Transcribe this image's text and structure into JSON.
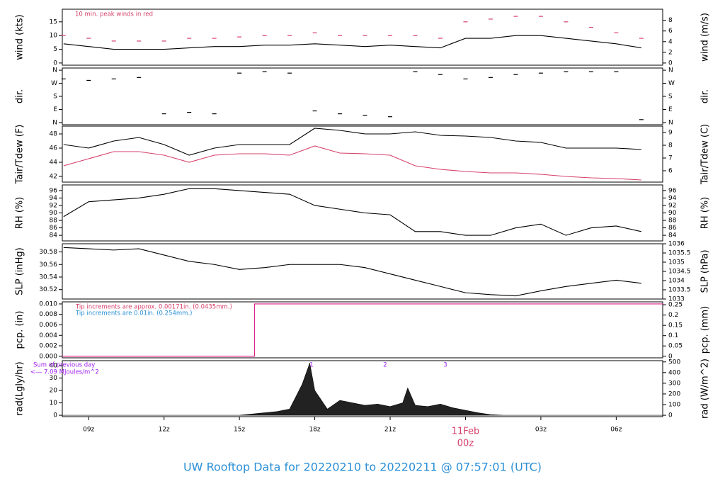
{
  "title": "UW Rooftop Data for 20220210  to  20220211 @ 07:57:01  (UTC)",
  "chart_data": [
    {
      "type": "line",
      "ylabel": "wind (kts)",
      "y2label": "wind (m/s)",
      "annotations": [
        {
          "text": "10 min. peak winds in red",
          "color": "#d6406b"
        }
      ],
      "xlim": [
        7.95,
        31.85
      ],
      "ylim": [
        -0.8,
        19.6
      ],
      "yticks": [
        0,
        5,
        10,
        15
      ],
      "y2lim": [
        -0.41,
        10.08
      ],
      "y2ticks": [
        0,
        2,
        4,
        6,
        8
      ],
      "x": [
        8,
        9,
        10,
        11,
        12,
        13,
        14,
        15,
        16,
        17,
        18,
        19,
        20,
        21,
        22,
        23,
        24,
        25,
        26,
        27,
        28,
        29,
        30,
        31
      ],
      "series": [
        {
          "color": "#000000",
          "values": [
            7,
            6,
            5,
            5,
            5,
            5.5,
            6,
            6,
            6.5,
            6.5,
            7,
            6.5,
            6,
            6.5,
            6,
            5.5,
            9,
            9,
            10,
            10,
            9,
            8,
            7,
            5.5
          ]
        },
        {
          "color": "#d6406b",
          "marker": "dash",
          "values": [
            10,
            9,
            8,
            8,
            8,
            9,
            9,
            9.5,
            10,
            10,
            11,
            10,
            10,
            10,
            10,
            9,
            15,
            16,
            17,
            17,
            15,
            13,
            11,
            9
          ]
        }
      ]
    },
    {
      "type": "scatter",
      "ylabel": "dir.",
      "y2label": "dir.",
      "xlim": [
        7.95,
        31.85
      ],
      "ylim": [
        -15,
        375
      ],
      "yticks": [
        {
          "value": 360,
          "label": "N"
        },
        {
          "value": 270,
          "label": "W"
        },
        {
          "value": 180,
          "label": "S"
        },
        {
          "value": 90,
          "label": "E"
        },
        {
          "value": 0,
          "label": "N"
        }
      ],
      "y2lim": [
        -15,
        375
      ],
      "y2ticks": [
        {
          "value": 360,
          "label": "N"
        },
        {
          "value": 270,
          "label": "W"
        },
        {
          "value": 180,
          "label": "S"
        },
        {
          "value": 90,
          "label": "E"
        },
        {
          "value": 0,
          "label": "N"
        }
      ],
      "x": [
        8,
        9,
        10,
        11,
        12,
        13,
        14,
        15,
        16,
        17,
        18,
        19,
        20,
        21,
        22,
        23,
        24,
        25,
        26,
        27,
        28,
        29,
        30,
        31
      ],
      "series": [
        {
          "color": "#000000",
          "values": [
            300,
            290,
            300,
            310,
            60,
            70,
            60,
            340,
            350,
            340,
            80,
            60,
            50,
            40,
            350,
            330,
            300,
            310,
            330,
            340,
            350,
            350,
            350,
            20
          ]
        }
      ]
    },
    {
      "type": "line",
      "ylabel": "Tair/Tdew (F)",
      "y2label": "Tair/Tdew (C)",
      "xlim": [
        7.95,
        31.85
      ],
      "ylim": [
        41.2,
        49.1
      ],
      "yticks": [
        42,
        44,
        46,
        48
      ],
      "y2lim": [
        5.11,
        9.5
      ],
      "y2ticks": [
        6,
        7,
        8,
        9
      ],
      "x": [
        8,
        9,
        10,
        11,
        12,
        13,
        14,
        15,
        16,
        17,
        18,
        19,
        20,
        21,
        22,
        23,
        24,
        25,
        26,
        27,
        28,
        29,
        30,
        31
      ],
      "series": [
        {
          "color": "#000000",
          "values": [
            46.5,
            46,
            47,
            47.5,
            46.5,
            45,
            46,
            46.5,
            46.5,
            46.5,
            48.8,
            48.5,
            48,
            48,
            48.3,
            47.8,
            47.7,
            47.5,
            47,
            46.8,
            46,
            46,
            46,
            45.8
          ]
        },
        {
          "color": "#d6406b",
          "values": [
            43.5,
            44.5,
            45.5,
            45.5,
            45,
            44,
            45,
            45.2,
            45.2,
            45,
            46.3,
            45.3,
            45.2,
            45,
            43.5,
            43,
            42.7,
            42.5,
            42.5,
            42.3,
            42,
            41.8,
            41.7,
            41.5
          ]
        }
      ]
    },
    {
      "type": "line",
      "ylabel": "RH (%)",
      "y2label": "RH (%)",
      "xlim": [
        7.95,
        31.85
      ],
      "ylim": [
        82.5,
        97.5
      ],
      "yticks": [
        84,
        86,
        88,
        90,
        92,
        94,
        96
      ],
      "y2lim": [
        82.5,
        97.5
      ],
      "y2ticks": [
        84,
        86,
        88,
        90,
        92,
        94,
        96
      ],
      "x": [
        8,
        9,
        10,
        11,
        12,
        13,
        14,
        15,
        16,
        17,
        18,
        19,
        20,
        21,
        22,
        23,
        24,
        25,
        26,
        27,
        28,
        29,
        30,
        31
      ],
      "series": [
        {
          "color": "#000000",
          "values": [
            89,
            93,
            93.5,
            94,
            95,
            96.5,
            96.5,
            96,
            95.5,
            95,
            92,
            91,
            90,
            89.5,
            85,
            85,
            84,
            84,
            86,
            87,
            84,
            86,
            86.5,
            85
          ]
        }
      ]
    },
    {
      "type": "line",
      "ylabel": "SLP (inHg)",
      "y2label": "SLP (hPa)",
      "xlim": [
        7.95,
        31.85
      ],
      "ylim": [
        30.505,
        30.593
      ],
      "yticks": [
        30.52,
        30.54,
        30.56,
        30.58
      ],
      "y2lim": [
        1033.0,
        1036.0
      ],
      "y2ticks": [
        1033,
        1033.5,
        1034,
        1034.5,
        1035,
        1035.5,
        1036
      ],
      "x": [
        8,
        9,
        10,
        11,
        12,
        13,
        14,
        15,
        16,
        17,
        18,
        19,
        20,
        21,
        22,
        23,
        24,
        25,
        26,
        27,
        28,
        29,
        30,
        31
      ],
      "series": [
        {
          "color": "#000000",
          "values": [
            30.587,
            30.585,
            30.583,
            30.585,
            30.575,
            30.565,
            30.56,
            30.552,
            30.555,
            30.56,
            30.56,
            30.56,
            30.555,
            30.545,
            30.535,
            30.525,
            30.515,
            30.512,
            30.51,
            30.518,
            30.525,
            30.53,
            30.535,
            30.53
          ]
        }
      ]
    },
    {
      "type": "line",
      "ylabel": "pcp. (in)",
      "y2label": "pcp. (mm)",
      "annotations": [
        {
          "text": "Tip increments are approx. 0.00171in. (0.0435mm.)",
          "color": "#d6406b"
        },
        {
          "text": "Tip increments are 0.01in. (0.254mm.)",
          "color": "#2b8fd6"
        }
      ],
      "xlim": [
        7.95,
        31.85
      ],
      "ylim": [
        -0.0003,
        0.0104
      ],
      "yticks": [
        {
          "value": 0,
          "label": "0.000"
        },
        0.002,
        0.004,
        0.006,
        0.008,
        {
          "value": 0.01,
          "label": "0.010"
        }
      ],
      "y2lim": [
        -0.0076,
        0.264
      ],
      "y2ticks": [
        0,
        0.05,
        0.1,
        0.15,
        0.2,
        0.25
      ],
      "x": [
        7.95,
        15.6,
        15.6,
        31.85
      ],
      "series": [
        {
          "color": "#e0208a",
          "values": [
            0,
            0,
            0.01,
            0.01
          ]
        }
      ]
    },
    {
      "type": "area",
      "ylabel": "rad(Lgly/hr)",
      "y2label": "rad (W/m^2)",
      "annotations": [
        {
          "text": "Sum of previous day",
          "color": "#a020f0"
        },
        {
          "text": "<--- 7.09 MJoules/m^2",
          "color": "#a020f0"
        },
        {
          "text": "1",
          "color": "#a020f0"
        },
        {
          "text": "2",
          "color": "#a020f0"
        },
        {
          "text": "3",
          "color": "#a020f0"
        }
      ],
      "xlim": [
        7.95,
        31.85
      ],
      "ylim": [
        -1.1,
        44
      ],
      "yticks": [
        0,
        10,
        20,
        30,
        40
      ],
      "y2lim": [
        -12.8,
        511.7
      ],
      "y2ticks": [
        0,
        100,
        200,
        300,
        400,
        500
      ],
      "xticks": [
        {
          "value": 9,
          "label": "09z"
        },
        {
          "value": 12,
          "label": "12z"
        },
        {
          "value": 15,
          "label": "15z"
        },
        {
          "value": 18,
          "label": "18z"
        },
        {
          "value": 21,
          "label": "21z"
        },
        {
          "value": 24,
          "label": "00z"
        },
        {
          "value": 27,
          "label": "03z"
        },
        {
          "value": 30,
          "label": "06z"
        }
      ],
      "date_label": "11Feb",
      "x": [
        7.95,
        15,
        15.5,
        16,
        16.5,
        17,
        17.5,
        17.8,
        18,
        18.5,
        19,
        19.5,
        20,
        20.5,
        21,
        21.5,
        21.7,
        22,
        22.5,
        23,
        23.5,
        24,
        24.5,
        25,
        25.5,
        31.85
      ],
      "series": [
        {
          "color": "#222222",
          "values": [
            0,
            0,
            1,
            2,
            3,
            5,
            25,
            42,
            20,
            5,
            12,
            10,
            8,
            9,
            7,
            10,
            22,
            8,
            7,
            9,
            6,
            4,
            2,
            0.5,
            0,
            0
          ]
        }
      ]
    }
  ]
}
